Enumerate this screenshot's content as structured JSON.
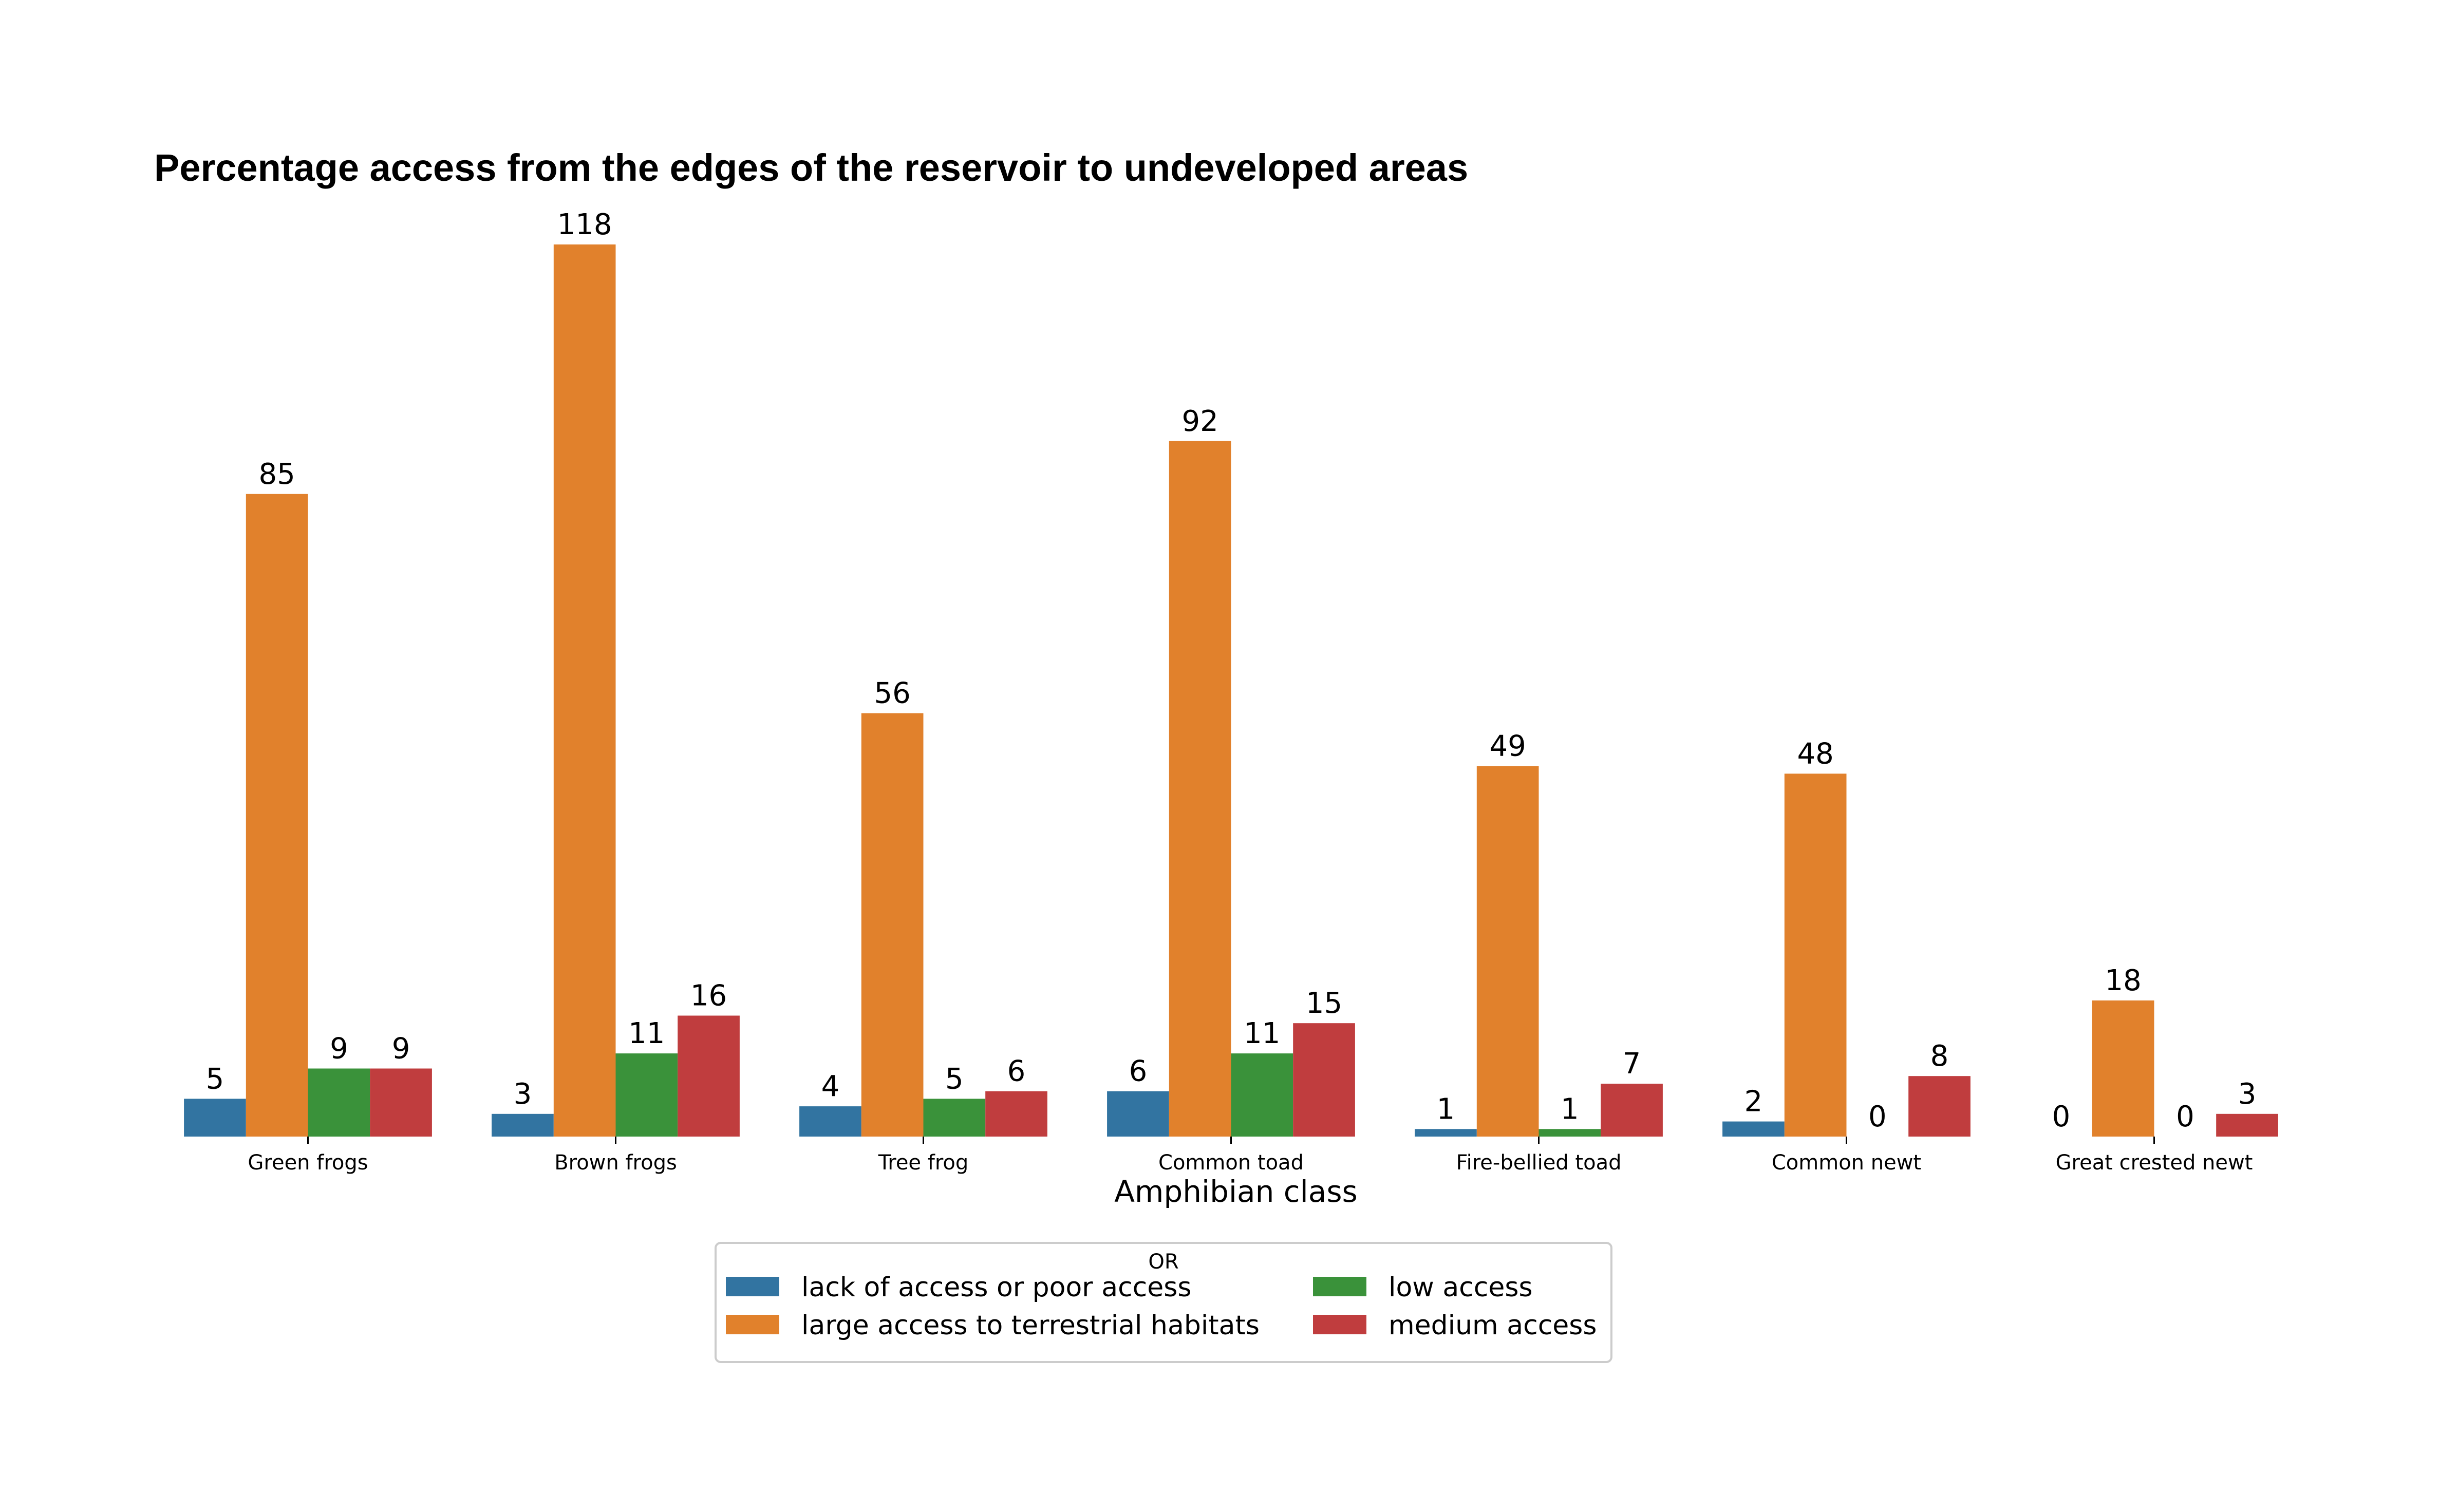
{
  "chart_data": {
    "type": "bar",
    "title": "Percentage access from the edges of the reservoir to undeveloped areas",
    "xlabel": "Amphibian class",
    "ylabel": "",
    "ylim": [
      0,
      124
    ],
    "categories": [
      "Green frogs",
      "Brown frogs",
      "Tree frog",
      "Common toad",
      "Fire-bellied toad",
      "Common newt",
      "Great crested newt"
    ],
    "series": [
      {
        "name": "lack of access or poor access",
        "color": "#3274a1",
        "values": [
          5,
          3,
          4,
          6,
          1,
          2,
          0
        ]
      },
      {
        "name": "large access to terrestrial habitats",
        "color": "#e1812c",
        "values": [
          85,
          118,
          56,
          92,
          49,
          48,
          18
        ]
      },
      {
        "name": "low access",
        "color": "#3a923a",
        "values": [
          9,
          11,
          5,
          11,
          1,
          0,
          0
        ]
      },
      {
        "name": "medium access",
        "color": "#c03d3e",
        "values": [
          9,
          16,
          6,
          15,
          7,
          8,
          3
        ]
      }
    ],
    "legend": {
      "title": "OR",
      "placement": "bottom-center",
      "columns": 2
    },
    "grid": false
  }
}
